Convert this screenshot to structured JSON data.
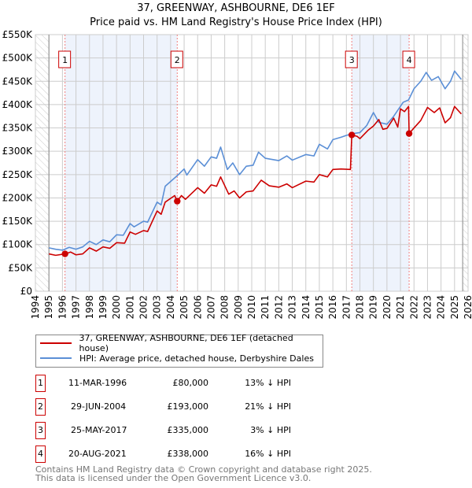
{
  "title_line1": "37, GREENWAY, ASHBOURNE, DE6 1EF",
  "title_line2": "Price paid vs. HM Land Registry's House Price Index (HPI)",
  "colors": {
    "price": "#cc0000",
    "hpi": "#5b8fd6",
    "band": "#eef3fc"
  },
  "chart_data": {
    "type": "line",
    "xlim": [
      1994,
      2026
    ],
    "ylim": [
      0,
      550000
    ],
    "yticks": [
      {
        "v": 0,
        "label": "£0"
      },
      {
        "v": 50000,
        "label": "£50K"
      },
      {
        "v": 100000,
        "label": "£100K"
      },
      {
        "v": 150000,
        "label": "£150K"
      },
      {
        "v": 200000,
        "label": "£200K"
      },
      {
        "v": 250000,
        "label": "£250K"
      },
      {
        "v": 300000,
        "label": "£300K"
      },
      {
        "v": 350000,
        "label": "£350K"
      },
      {
        "v": 400000,
        "label": "£400K"
      },
      {
        "v": 450000,
        "label": "£450K"
      },
      {
        "v": 500000,
        "label": "£500K"
      },
      {
        "v": 550000,
        "label": "£550K"
      }
    ],
    "xticks": [
      "1994",
      "1995",
      "1996",
      "1997",
      "1998",
      "1999",
      "2000",
      "2001",
      "2002",
      "2003",
      "2004",
      "2005",
      "2006",
      "2007",
      "2008",
      "2009",
      "2010",
      "2011",
      "2012",
      "2013",
      "2014",
      "2015",
      "2016",
      "2017",
      "2018",
      "2019",
      "2020",
      "2021",
      "2022",
      "2023",
      "2024",
      "2025",
      "2026"
    ],
    "data_range": [
      1995,
      2025.6
    ],
    "series": [
      {
        "name": "37, GREENWAY, ASHBOURNE, DE6 1EF (detached house)",
        "key": "price",
        "points": [
          [
            1995,
            80000
          ],
          [
            1995.5,
            77000
          ],
          [
            1996.19,
            80000
          ],
          [
            1996.6,
            84000
          ],
          [
            1997,
            78000
          ],
          [
            1997.5,
            80000
          ],
          [
            1998,
            93000
          ],
          [
            1998.5,
            86000
          ],
          [
            1999,
            95000
          ],
          [
            1999.5,
            92000
          ],
          [
            2000,
            104000
          ],
          [
            2000.6,
            103000
          ],
          [
            2001,
            127000
          ],
          [
            2001.4,
            122000
          ],
          [
            2002,
            130000
          ],
          [
            2002.3,
            128000
          ],
          [
            2003,
            172000
          ],
          [
            2003.3,
            165000
          ],
          [
            2003.6,
            191000
          ],
          [
            2004.3,
            205000
          ],
          [
            2004.49,
            193000
          ],
          [
            2004.8,
            205000
          ],
          [
            2005.1,
            197000
          ],
          [
            2006,
            222000
          ],
          [
            2006.5,
            210000
          ],
          [
            2007,
            228000
          ],
          [
            2007.4,
            225000
          ],
          [
            2007.7,
            245000
          ],
          [
            2008.3,
            208000
          ],
          [
            2008.7,
            215000
          ],
          [
            2009.1,
            200000
          ],
          [
            2009.6,
            213000
          ],
          [
            2010.1,
            215000
          ],
          [
            2010.7,
            238000
          ],
          [
            2011.3,
            226000
          ],
          [
            2012,
            223000
          ],
          [
            2012.6,
            230000
          ],
          [
            2013,
            222000
          ],
          [
            2014,
            236000
          ],
          [
            2014.6,
            234000
          ],
          [
            2015,
            250000
          ],
          [
            2015.6,
            245000
          ],
          [
            2016,
            261000
          ],
          [
            2016.6,
            262000
          ],
          [
            2017.3,
            261000
          ],
          [
            2017.4,
            335000
          ],
          [
            2017.8,
            332000
          ],
          [
            2018,
            327000
          ],
          [
            2018.6,
            345000
          ],
          [
            2019,
            354000
          ],
          [
            2019.4,
            368000
          ],
          [
            2019.7,
            347000
          ],
          [
            2020,
            349000
          ],
          [
            2020.5,
            371000
          ],
          [
            2020.8,
            352000
          ],
          [
            2021,
            391000
          ],
          [
            2021.3,
            385000
          ],
          [
            2021.6,
            396000
          ],
          [
            2021.64,
            338000
          ],
          [
            2022,
            350000
          ],
          [
            2022.5,
            366000
          ],
          [
            2023,
            394000
          ],
          [
            2023.5,
            383000
          ],
          [
            2023.9,
            393000
          ],
          [
            2024.3,
            361000
          ],
          [
            2024.7,
            372000
          ],
          [
            2025,
            396000
          ],
          [
            2025.5,
            380000
          ]
        ]
      },
      {
        "name": "HPI: Average price, detached house, Derbyshire Dales",
        "key": "hpi",
        "points": [
          [
            1995,
            93000
          ],
          [
            1995.5,
            90000
          ],
          [
            1996,
            88000
          ],
          [
            1996.5,
            94000
          ],
          [
            1997,
            90000
          ],
          [
            1997.5,
            95000
          ],
          [
            1998,
            107000
          ],
          [
            1998.5,
            100000
          ],
          [
            1999,
            110000
          ],
          [
            1999.5,
            106000
          ],
          [
            2000,
            121000
          ],
          [
            2000.5,
            120000
          ],
          [
            2001,
            145000
          ],
          [
            2001.3,
            138000
          ],
          [
            2002,
            150000
          ],
          [
            2002.3,
            148000
          ],
          [
            2003,
            191000
          ],
          [
            2003.3,
            185000
          ],
          [
            2003.6,
            225000
          ],
          [
            2004.5,
            248000
          ],
          [
            2005,
            262000
          ],
          [
            2005.2,
            249000
          ],
          [
            2006,
            282000
          ],
          [
            2006.5,
            268000
          ],
          [
            2007,
            288000
          ],
          [
            2007.4,
            285000
          ],
          [
            2007.7,
            309000
          ],
          [
            2008.2,
            261000
          ],
          [
            2008.6,
            275000
          ],
          [
            2009.1,
            250000
          ],
          [
            2009.6,
            268000
          ],
          [
            2010.1,
            270000
          ],
          [
            2010.5,
            298000
          ],
          [
            2011,
            285000
          ],
          [
            2012,
            280000
          ],
          [
            2012.6,
            290000
          ],
          [
            2013,
            281000
          ],
          [
            2014,
            293000
          ],
          [
            2014.6,
            290000
          ],
          [
            2015,
            315000
          ],
          [
            2015.6,
            305000
          ],
          [
            2016,
            325000
          ],
          [
            2016.6,
            330000
          ],
          [
            2017,
            334000
          ],
          [
            2017.5,
            338000
          ],
          [
            2018,
            340000
          ],
          [
            2018.5,
            355000
          ],
          [
            2019,
            383000
          ],
          [
            2019.4,
            362000
          ],
          [
            2020,
            358000
          ],
          [
            2020.5,
            375000
          ],
          [
            2021.2,
            405000
          ],
          [
            2021.6,
            410000
          ],
          [
            2022,
            434000
          ],
          [
            2022.5,
            450000
          ],
          [
            2022.9,
            469000
          ],
          [
            2023.3,
            452000
          ],
          [
            2023.8,
            460000
          ],
          [
            2024.3,
            434000
          ],
          [
            2024.7,
            450000
          ],
          [
            2025,
            472000
          ],
          [
            2025.5,
            454000
          ]
        ]
      }
    ],
    "sales": [
      {
        "n": "1",
        "x": 2004.49,
        "from": 1996.19,
        "year": 1996.19,
        "value": 80000
      },
      {
        "n": "2",
        "year": 2004.49,
        "value": 193000
      },
      {
        "n": "3",
        "year": 2017.4,
        "value": 335000
      },
      {
        "n": "4",
        "year": 2021.64,
        "value": 338000
      }
    ]
  },
  "legend": {
    "price_label": "37, GREENWAY, ASHBOURNE, DE6 1EF (detached house)",
    "hpi_label": "HPI: Average price, detached house, Derbyshire Dales"
  },
  "transactions": [
    {
      "n": "1",
      "date": "11-MAR-1996",
      "price": "£80,000",
      "delta": "13% ↓ HPI"
    },
    {
      "n": "2",
      "date": "29-JUN-2004",
      "price": "£193,000",
      "delta": "21% ↓ HPI"
    },
    {
      "n": "3",
      "date": "25-MAY-2017",
      "price": "£335,000",
      "delta": "3% ↓ HPI"
    },
    {
      "n": "4",
      "date": "20-AUG-2021",
      "price": "£338,000",
      "delta": "16% ↓ HPI"
    }
  ],
  "footer": {
    "line1": "Contains HM Land Registry data © Crown copyright and database right 2025.",
    "line2": "This data is licensed under the Open Government Licence v3.0."
  }
}
